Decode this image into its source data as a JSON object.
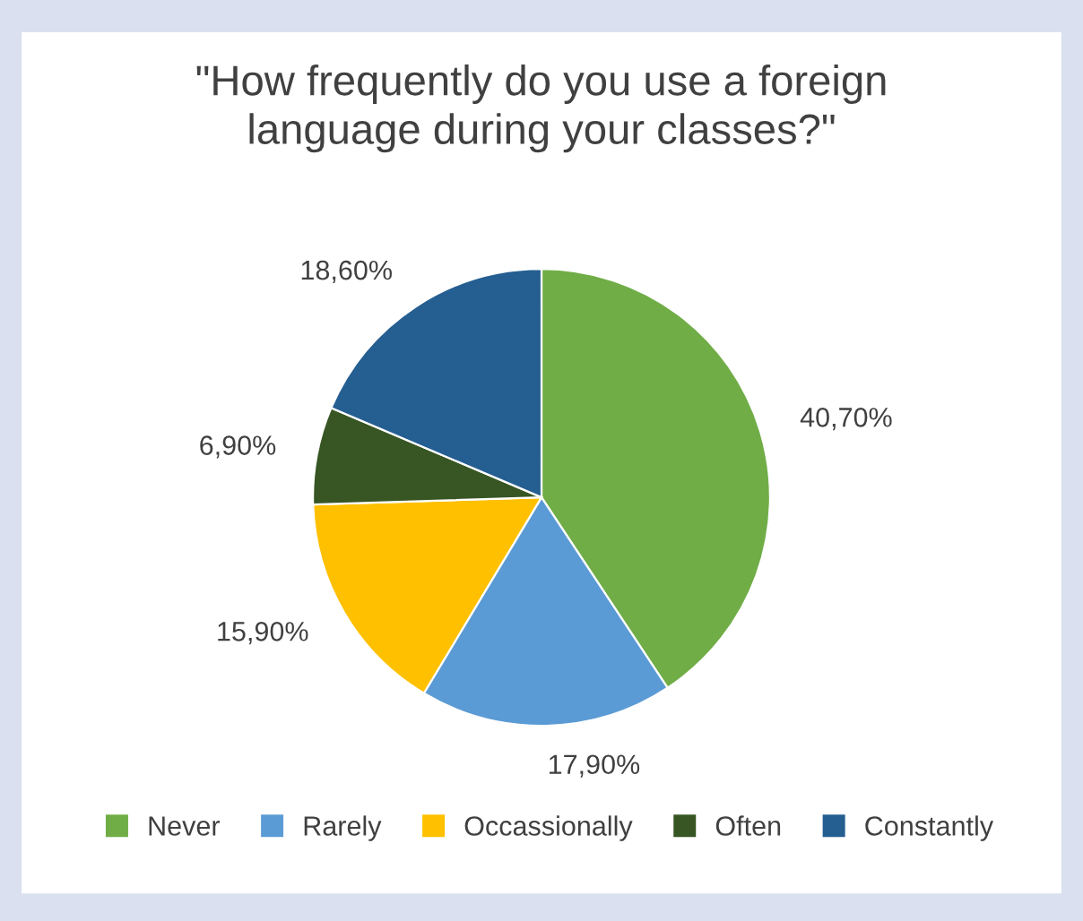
{
  "chart_data": {
    "type": "pie",
    "title": "\"How frequently do you use a foreign\nlanguage during your classes?\"",
    "categories": [
      "Never",
      "Rarely",
      "Occassionally",
      "Often",
      "Constantly"
    ],
    "values": [
      40.7,
      17.9,
      15.9,
      6.9,
      18.6
    ],
    "value_labels": [
      "40,70%",
      "17,90%",
      "15,90%",
      "6,90%",
      "18,60%"
    ],
    "colors": [
      "#70ad47",
      "#5b9bd5",
      "#ffc000",
      "#375623",
      "#255e91"
    ],
    "legend": "bottom"
  }
}
